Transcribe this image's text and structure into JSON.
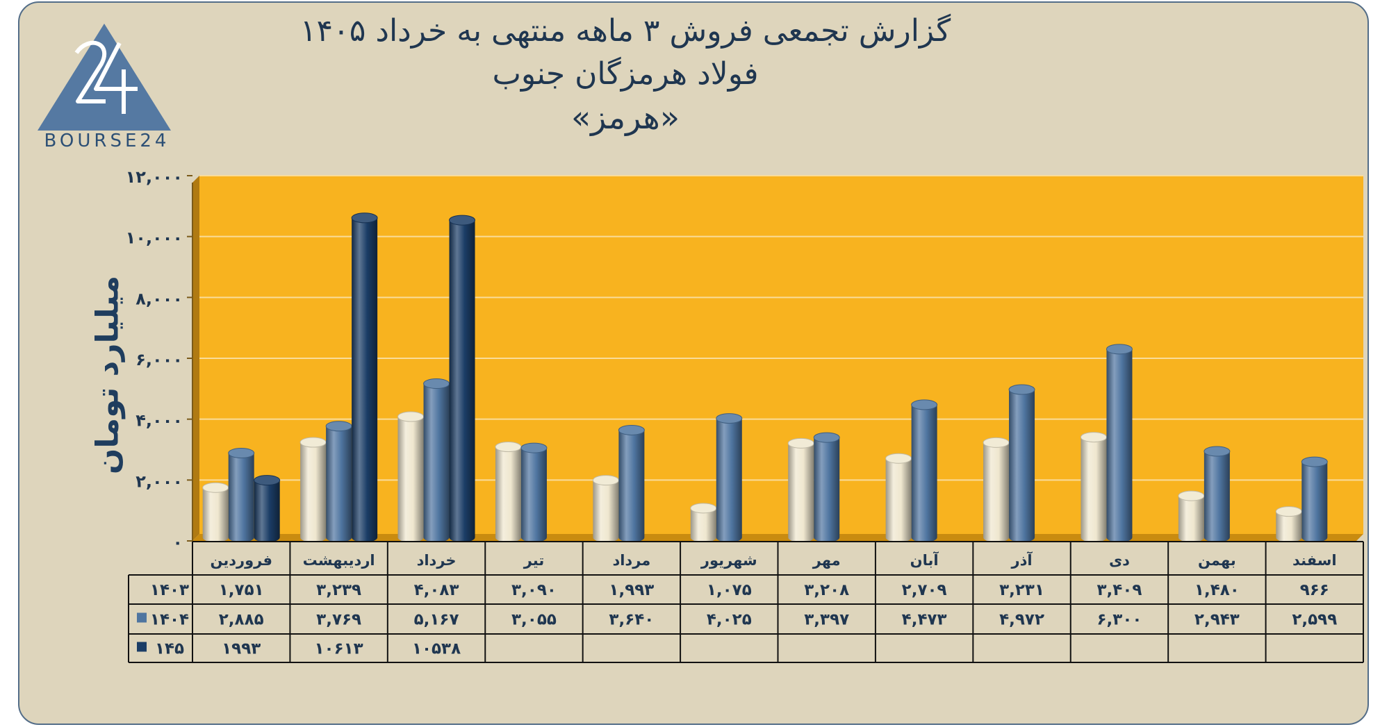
{
  "header": {
    "title_lines": [
      "گزارش تجمعی فروش ۳ ماهه منتهی به خرداد ۱۴۰۵",
      "فولاد هرمزگان جنوب",
      "«هرمز»"
    ]
  },
  "logo": {
    "text": "BOURSE24",
    "icon": "bourse24-triangle-logo"
  },
  "colors": {
    "plot_bg": "#f8b31f",
    "frame_bg": "#ded5bc",
    "series_1403": "#efe7cf",
    "series_1404": "#4f75a0",
    "series_145": "#1b3d66",
    "text_dark": "#1f3650"
  },
  "chart_data": {
    "type": "bar",
    "ylabel": "میلیارد تومان",
    "ylim": [
      0,
      12000
    ],
    "yticks": [
      0,
      2000,
      4000,
      6000,
      8000,
      10000,
      12000
    ],
    "ytick_labels": [
      "۰",
      "۲,۰۰۰",
      "۴,۰۰۰",
      "۶,۰۰۰",
      "۸,۰۰۰",
      "۱۰,۰۰۰",
      "۱۲,۰۰۰"
    ],
    "grid": true,
    "categories": [
      "فروردین",
      "اردیبهشت",
      "خرداد",
      "تیر",
      "مرداد",
      "شهریور",
      "مهر",
      "آبان",
      "آذر",
      "دی",
      "بهمن",
      "اسفند"
    ],
    "series": [
      {
        "name": "۱۴۰۳",
        "values": [
          1751,
          3239,
          4083,
          3090,
          1993,
          1075,
          3208,
          2709,
          3231,
          3409,
          1480,
          966
        ],
        "labels": [
          "۱,۷۵۱",
          "۳,۲۳۹",
          "۴,۰۸۳",
          "۳,۰۹۰",
          "۱,۹۹۳",
          "۱,۰۷۵",
          "۳,۲۰۸",
          "۲,۷۰۹",
          "۳,۲۳۱",
          "۳,۴۰۹",
          "۱,۴۸۰",
          "۹۶۶"
        ]
      },
      {
        "name": "۱۴۰۴",
        "values": [
          2885,
          3769,
          5167,
          3055,
          3640,
          4025,
          3397,
          4473,
          4972,
          6300,
          2943,
          2599
        ],
        "labels": [
          "۲,۸۸۵",
          "۳,۷۶۹",
          "۵,۱۶۷",
          "۳,۰۵۵",
          "۳,۶۴۰",
          "۴,۰۲۵",
          "۳,۳۹۷",
          "۴,۴۷۳",
          "۴,۹۷۲",
          "۶,۳۰۰",
          "۲,۹۴۳",
          "۲,۵۹۹"
        ]
      },
      {
        "name": "۱۴۵",
        "values": [
          1993,
          10613,
          10538,
          null,
          null,
          null,
          null,
          null,
          null,
          null,
          null,
          null
        ],
        "labels": [
          "۱۹۹۳",
          "۱۰۶۱۳",
          "۱۰۵۳۸",
          "",
          "",
          "",
          "",
          "",
          "",
          "",
          "",
          ""
        ]
      }
    ]
  }
}
